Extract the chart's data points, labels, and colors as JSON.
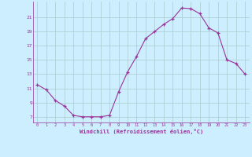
{
  "x": [
    0,
    1,
    2,
    3,
    4,
    5,
    6,
    7,
    8,
    9,
    10,
    11,
    12,
    13,
    14,
    15,
    16,
    17,
    18,
    19,
    20,
    21,
    22,
    23
  ],
  "y": [
    11.5,
    10.8,
    9.3,
    8.5,
    7.2,
    7.0,
    7.0,
    7.0,
    7.2,
    10.5,
    13.3,
    15.5,
    18.0,
    19.0,
    20.0,
    20.8,
    22.3,
    22.2,
    21.5,
    19.5,
    18.8,
    15.0,
    14.5,
    13.0
  ],
  "line_color": "#993399",
  "marker": "+",
  "marker_color": "#993399",
  "bg_color": "#cceeff",
  "grid_color": "#aacccc",
  "xlabel": "Windchill (Refroidissement éolien,°C)",
  "xlabel_color": "#993399",
  "tick_color": "#993399",
  "yticks": [
    7,
    9,
    11,
    13,
    15,
    17,
    19,
    21
  ],
  "xticks": [
    0,
    1,
    2,
    3,
    4,
    5,
    6,
    7,
    8,
    9,
    10,
    11,
    12,
    13,
    14,
    15,
    16,
    17,
    18,
    19,
    20,
    21,
    22,
    23
  ],
  "ylim": [
    6.2,
    23.2
  ],
  "xlim": [
    -0.5,
    23.5
  ]
}
